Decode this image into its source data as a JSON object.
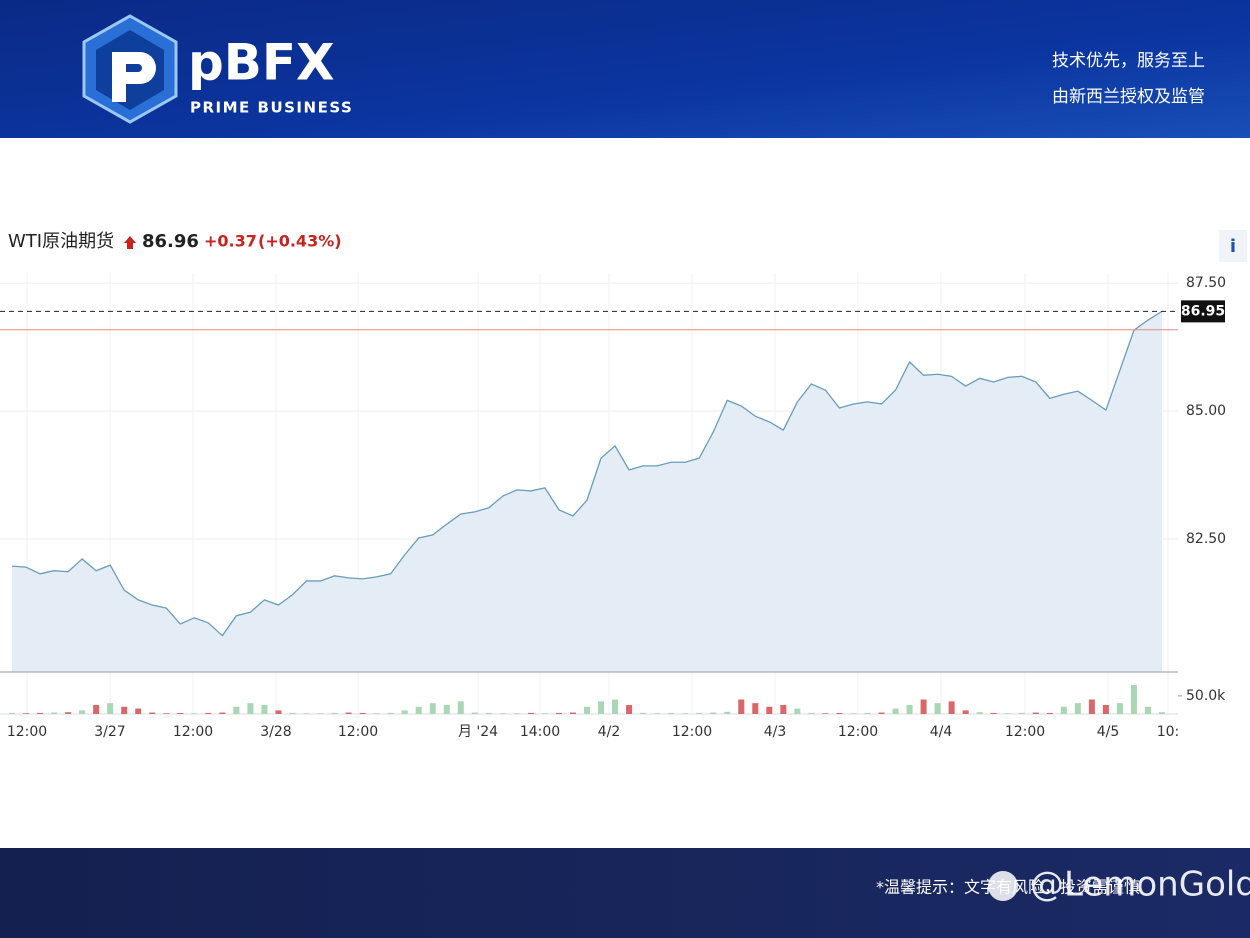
{
  "header": {
    "brand": "pBFX",
    "tagline": "PRIME BUSINESS",
    "slogans": [
      "技术优先，服务至上",
      "由新西兰授权及监管"
    ]
  },
  "chart_data": {
    "type": "line",
    "title": "WTI原油期货",
    "quote": {
      "last": 86.96,
      "change": "+0.37",
      "change_percent": "(+0.43%)"
    },
    "info_button": "i",
    "ylim": [
      79.9,
      87.7
    ],
    "yticks": [
      {
        "value": 82.5,
        "label": "82.50"
      },
      {
        "value": 85,
        "label": "85.00"
      },
      {
        "value": 87.5,
        "label": "87.50"
      }
    ],
    "last_price": {
      "value": 86.95,
      "label": "86.95"
    },
    "previous_close": 86.59,
    "line_color": "#6a9cbc",
    "area_color": "#e4edf6",
    "prev_close_color": "#e88a86",
    "values": [
      81.97,
      81.95,
      81.82,
      81.88,
      81.86,
      82.11,
      81.88,
      81.99,
      81.5,
      81.31,
      81.21,
      81.15,
      80.84,
      80.96,
      80.86,
      80.61,
      81.0,
      81.07,
      81.31,
      81.21,
      81.41,
      81.68,
      81.68,
      81.78,
      81.74,
      81.72,
      81.76,
      81.82,
      82.19,
      82.52,
      82.58,
      82.79,
      82.99,
      83.03,
      83.11,
      83.34,
      83.46,
      83.44,
      83.5,
      83.07,
      82.95,
      83.26,
      84.08,
      84.32,
      83.85,
      83.93,
      83.93,
      84.0,
      84.0,
      84.08,
      84.59,
      85.21,
      85.1,
      84.9,
      84.79,
      84.63,
      85.18,
      85.53,
      85.41,
      85.06,
      85.14,
      85.18,
      85.14,
      85.41,
      85.96,
      85.7,
      85.72,
      85.68,
      85.49,
      85.64,
      85.57,
      85.66,
      85.68,
      85.57,
      85.25,
      85.33,
      85.39,
      85.21,
      85.02,
      85.8,
      86.58,
      86.78,
      86.95
    ],
    "volume": [
      3000,
      2000,
      3000,
      4000,
      5000,
      10000,
      25000,
      30000,
      20000,
      15000,
      4000,
      2000,
      3000,
      2000,
      3000,
      4000,
      20000,
      30000,
      25000,
      10000,
      3000,
      2000,
      2000,
      3000,
      4000,
      3000,
      2000,
      3000,
      10000,
      20000,
      30000,
      25000,
      35000,
      4000,
      3000,
      2000,
      2000,
      3000,
      2000,
      3000,
      4000,
      20000,
      35000,
      40000,
      25000,
      3000,
      2000,
      3000,
      2000,
      3000,
      4000,
      6000,
      40000,
      30000,
      20000,
      25000,
      15000,
      3000,
      2000,
      3000,
      2000,
      3000,
      4000,
      15000,
      25000,
      40000,
      30000,
      35000,
      10000,
      5000,
      3000,
      2000,
      3000,
      4000,
      3000,
      20000,
      30000,
      40000,
      25000,
      30000,
      80000,
      20000,
      5000
    ],
    "volume_ylim": [
      0,
      116000
    ],
    "volume_ticks": [
      {
        "value": 50000,
        "label": "50.0k"
      }
    ],
    "volume_up_color": "#a9d6b4",
    "volume_down_color": "#d9666a",
    "xtick_labels": [
      "12:00",
      "3/27",
      "12:00",
      "3/28",
      "12:00",
      "月 '24",
      "14:00",
      "4/2",
      "12:00",
      "4/3",
      "12:00",
      "4/4",
      "12:00",
      "4/5",
      "10:"
    ]
  },
  "footer": {
    "notice": "*温馨提示：文字有风险，投资需谨慎",
    "watermark": "@LemonGold"
  }
}
